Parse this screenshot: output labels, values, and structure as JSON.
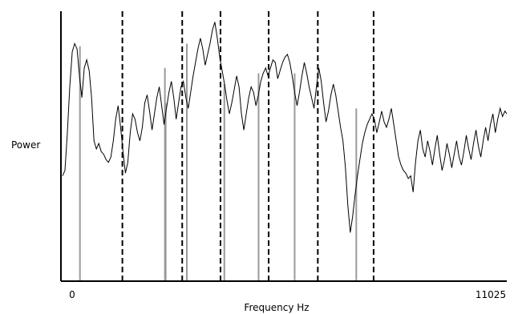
{
  "chart_data": {
    "type": "line",
    "xlabel": "Frequency Hz",
    "ylabel": "Power",
    "xlim": [
      0,
      11025
    ],
    "ylim": [
      0,
      1
    ],
    "x_ticks": [
      {
        "value": 0,
        "label": "0"
      },
      {
        "value": 11025,
        "label": "11025"
      }
    ],
    "grid": false,
    "series": [
      {
        "values": [
          [
            0,
            0.39
          ],
          [
            60,
            0.41
          ],
          [
            120,
            0.55
          ],
          [
            180,
            0.72
          ],
          [
            240,
            0.85
          ],
          [
            300,
            0.88
          ],
          [
            360,
            0.86
          ],
          [
            420,
            0.76
          ],
          [
            480,
            0.68
          ],
          [
            540,
            0.79
          ],
          [
            600,
            0.82
          ],
          [
            660,
            0.78
          ],
          [
            720,
            0.68
          ],
          [
            780,
            0.52
          ],
          [
            840,
            0.49
          ],
          [
            900,
            0.51
          ],
          [
            960,
            0.48
          ],
          [
            1020,
            0.47
          ],
          [
            1080,
            0.45
          ],
          [
            1140,
            0.44
          ],
          [
            1200,
            0.46
          ],
          [
            1260,
            0.52
          ],
          [
            1320,
            0.6
          ],
          [
            1380,
            0.65
          ],
          [
            1440,
            0.57
          ],
          [
            1500,
            0.48
          ],
          [
            1560,
            0.4
          ],
          [
            1620,
            0.44
          ],
          [
            1680,
            0.55
          ],
          [
            1740,
            0.62
          ],
          [
            1800,
            0.6
          ],
          [
            1860,
            0.55
          ],
          [
            1920,
            0.52
          ],
          [
            1980,
            0.57
          ],
          [
            2040,
            0.66
          ],
          [
            2100,
            0.69
          ],
          [
            2160,
            0.63
          ],
          [
            2220,
            0.56
          ],
          [
            2280,
            0.62
          ],
          [
            2340,
            0.68
          ],
          [
            2400,
            0.72
          ],
          [
            2460,
            0.65
          ],
          [
            2520,
            0.58
          ],
          [
            2580,
            0.64
          ],
          [
            2640,
            0.7
          ],
          [
            2700,
            0.74
          ],
          [
            2760,
            0.68
          ],
          [
            2820,
            0.6
          ],
          [
            2880,
            0.66
          ],
          [
            2940,
            0.72
          ],
          [
            3000,
            0.74
          ],
          [
            3060,
            0.68
          ],
          [
            3120,
            0.64
          ],
          [
            3180,
            0.7
          ],
          [
            3240,
            0.76
          ],
          [
            3300,
            0.81
          ],
          [
            3360,
            0.86
          ],
          [
            3420,
            0.9
          ],
          [
            3480,
            0.86
          ],
          [
            3540,
            0.8
          ],
          [
            3600,
            0.84
          ],
          [
            3660,
            0.88
          ],
          [
            3720,
            0.93
          ],
          [
            3780,
            0.96
          ],
          [
            3840,
            0.9
          ],
          [
            3900,
            0.83
          ],
          [
            3960,
            0.78
          ],
          [
            4020,
            0.73
          ],
          [
            4080,
            0.67
          ],
          [
            4140,
            0.62
          ],
          [
            4200,
            0.66
          ],
          [
            4260,
            0.71
          ],
          [
            4320,
            0.76
          ],
          [
            4380,
            0.72
          ],
          [
            4440,
            0.62
          ],
          [
            4500,
            0.56
          ],
          [
            4560,
            0.62
          ],
          [
            4620,
            0.68
          ],
          [
            4680,
            0.72
          ],
          [
            4740,
            0.7
          ],
          [
            4800,
            0.65
          ],
          [
            4860,
            0.69
          ],
          [
            4920,
            0.74
          ],
          [
            4980,
            0.77
          ],
          [
            5040,
            0.79
          ],
          [
            5100,
            0.76
          ],
          [
            5160,
            0.79
          ],
          [
            5220,
            0.82
          ],
          [
            5280,
            0.81
          ],
          [
            5340,
            0.75
          ],
          [
            5400,
            0.78
          ],
          [
            5460,
            0.81
          ],
          [
            5520,
            0.83
          ],
          [
            5580,
            0.84
          ],
          [
            5640,
            0.81
          ],
          [
            5700,
            0.76
          ],
          [
            5760,
            0.7
          ],
          [
            5820,
            0.65
          ],
          [
            5880,
            0.7
          ],
          [
            5940,
            0.76
          ],
          [
            6000,
            0.81
          ],
          [
            6060,
            0.77
          ],
          [
            6120,
            0.72
          ],
          [
            6180,
            0.68
          ],
          [
            6240,
            0.64
          ],
          [
            6300,
            0.72
          ],
          [
            6360,
            0.79
          ],
          [
            6420,
            0.74
          ],
          [
            6480,
            0.66
          ],
          [
            6540,
            0.59
          ],
          [
            6600,
            0.63
          ],
          [
            6660,
            0.69
          ],
          [
            6720,
            0.73
          ],
          [
            6780,
            0.69
          ],
          [
            6840,
            0.63
          ],
          [
            6900,
            0.57
          ],
          [
            6960,
            0.52
          ],
          [
            7020,
            0.42
          ],
          [
            7080,
            0.28
          ],
          [
            7140,
            0.18
          ],
          [
            7200,
            0.24
          ],
          [
            7260,
            0.32
          ],
          [
            7320,
            0.39
          ],
          [
            7380,
            0.45
          ],
          [
            7440,
            0.51
          ],
          [
            7500,
            0.55
          ],
          [
            7560,
            0.58
          ],
          [
            7620,
            0.6
          ],
          [
            7680,
            0.62
          ],
          [
            7740,
            0.6
          ],
          [
            7800,
            0.55
          ],
          [
            7860,
            0.59
          ],
          [
            7920,
            0.63
          ],
          [
            7980,
            0.59
          ],
          [
            8040,
            0.57
          ],
          [
            8100,
            0.6
          ],
          [
            8160,
            0.64
          ],
          [
            8220,
            0.58
          ],
          [
            8280,
            0.52
          ],
          [
            8340,
            0.46
          ],
          [
            8400,
            0.43
          ],
          [
            8460,
            0.41
          ],
          [
            8520,
            0.4
          ],
          [
            8580,
            0.38
          ],
          [
            8640,
            0.39
          ],
          [
            8700,
            0.33
          ],
          [
            8760,
            0.44
          ],
          [
            8820,
            0.52
          ],
          [
            8880,
            0.56
          ],
          [
            8940,
            0.49
          ],
          [
            9000,
            0.46
          ],
          [
            9060,
            0.52
          ],
          [
            9120,
            0.48
          ],
          [
            9180,
            0.43
          ],
          [
            9240,
            0.49
          ],
          [
            9300,
            0.54
          ],
          [
            9360,
            0.47
          ],
          [
            9420,
            0.41
          ],
          [
            9480,
            0.45
          ],
          [
            9540,
            0.51
          ],
          [
            9600,
            0.47
          ],
          [
            9660,
            0.42
          ],
          [
            9720,
            0.47
          ],
          [
            9780,
            0.52
          ],
          [
            9840,
            0.46
          ],
          [
            9900,
            0.43
          ],
          [
            9960,
            0.48
          ],
          [
            10020,
            0.54
          ],
          [
            10080,
            0.49
          ],
          [
            10140,
            0.45
          ],
          [
            10200,
            0.51
          ],
          [
            10260,
            0.56
          ],
          [
            10320,
            0.5
          ],
          [
            10380,
            0.46
          ],
          [
            10440,
            0.52
          ],
          [
            10500,
            0.57
          ],
          [
            10560,
            0.52
          ],
          [
            10620,
            0.58
          ],
          [
            10680,
            0.62
          ],
          [
            10740,
            0.55
          ],
          [
            10800,
            0.6
          ],
          [
            10860,
            0.64
          ],
          [
            10920,
            0.61
          ],
          [
            10980,
            0.63
          ],
          [
            11025,
            0.62
          ]
        ]
      }
    ],
    "peak_lines": [
      {
        "x": 432,
        "height": 0.87
      },
      {
        "x": 2540,
        "height": 0.79
      },
      {
        "x": 2560,
        "height": 0.66
      },
      {
        "x": 3085,
        "height": 0.88
      },
      {
        "x": 4015,
        "height": 0.73
      },
      {
        "x": 4865,
        "height": 0.77
      },
      {
        "x": 5760,
        "height": 0.77
      },
      {
        "x": 7290,
        "height": 0.64
      }
    ],
    "boundary_lines": [
      1485,
      2970,
      3920,
      5115,
      6335,
      7720
    ]
  }
}
